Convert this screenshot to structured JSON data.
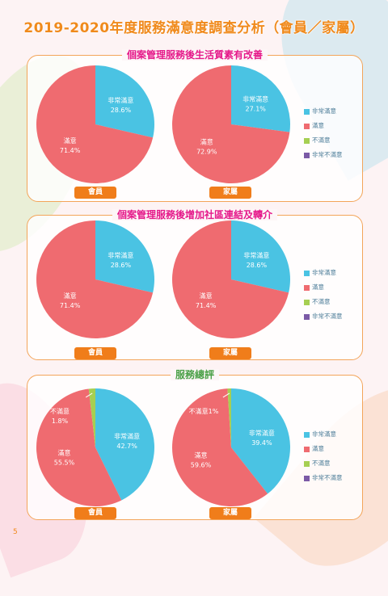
{
  "page_title": "2019-2020年度服務滿意度調查分析（會員／家屬）",
  "page_number": "5",
  "colors": {
    "very_satisfied": "#4ac3e3",
    "satisfied": "#ef6b70",
    "not_satisfied": "#a6cf52",
    "very_unsatisfied": "#7b5aa6"
  },
  "legend": [
    "非常滿意",
    "滿意",
    "不滿意",
    "非常不滿意"
  ],
  "chart_data": [
    {
      "type": "pie",
      "title": "個案管理服務後生活質素有改善",
      "charts": [
        {
          "label": "會員",
          "slices": [
            {
              "name": "非常滿意",
              "value": 28.6,
              "label": "28.6%"
            },
            {
              "name": "滿意",
              "value": 71.4,
              "label": "71.4%"
            }
          ]
        },
        {
          "label": "家屬",
          "slices": [
            {
              "name": "非常滿意",
              "value": 27.1,
              "label": "27.1%"
            },
            {
              "name": "滿意",
              "value": 72.9,
              "label": "72.9%"
            }
          ]
        }
      ]
    },
    {
      "type": "pie",
      "title": "個案管理服務後增加社區連結及轉介",
      "charts": [
        {
          "label": "會員",
          "slices": [
            {
              "name": "非常滿意",
              "value": 28.6,
              "label": "28.6%"
            },
            {
              "name": "滿意",
              "value": 71.4,
              "label": "71.4%"
            }
          ]
        },
        {
          "label": "家屬",
          "slices": [
            {
              "name": "非常滿意",
              "value": 28.6,
              "label": "28.6%"
            },
            {
              "name": "滿意",
              "value": 71.4,
              "label": "71.4%"
            }
          ]
        }
      ]
    },
    {
      "type": "pie",
      "title": "服務總評",
      "charts": [
        {
          "label": "會員",
          "slices": [
            {
              "name": "非常滿意",
              "value": 42.7,
              "label": "42.7%"
            },
            {
              "name": "滿意",
              "value": 55.5,
              "label": "55.5%"
            },
            {
              "name": "不滿意",
              "value": 1.8,
              "label": "1.8%"
            }
          ]
        },
        {
          "label": "家屬",
          "slices": [
            {
              "name": "非常滿意",
              "value": 39.4,
              "label": "39.4%"
            },
            {
              "name": "滿意",
              "value": 59.6,
              "label": "59.6%"
            },
            {
              "name": "不滿意",
              "value": 1,
              "label": "1%"
            }
          ]
        }
      ]
    }
  ]
}
